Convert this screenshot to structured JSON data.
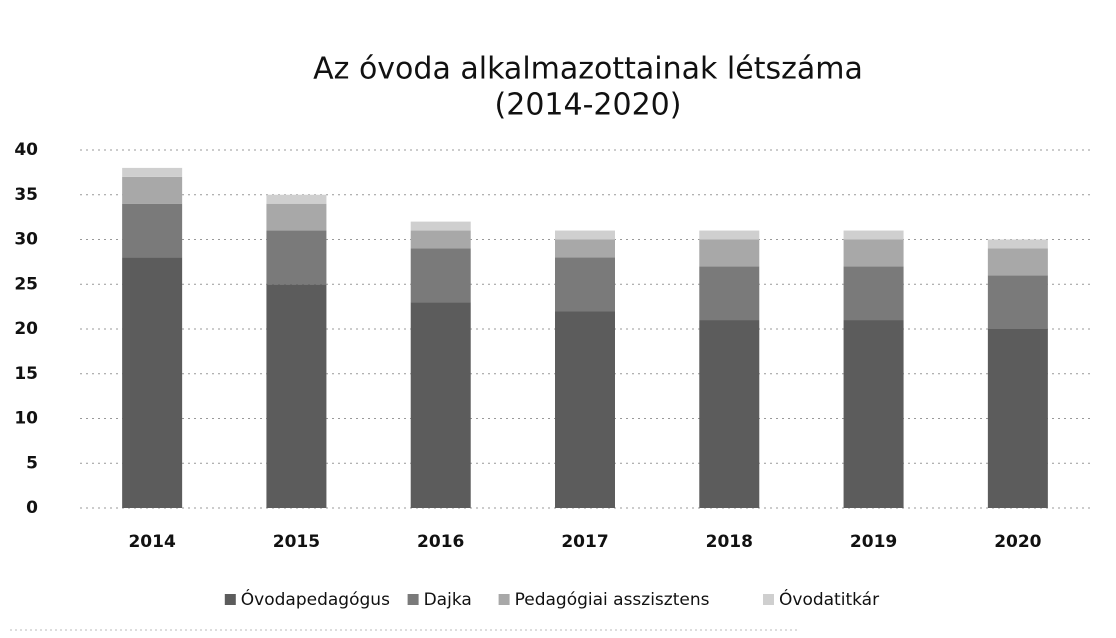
{
  "chart_data": {
    "type": "stacked_bar",
    "title": "Az óvoda alkalmazottainak létszáma",
    "subtitle": "(2014-2020)",
    "categories": [
      "2014",
      "2015",
      "2016",
      "2017",
      "2018",
      "2019",
      "2020"
    ],
    "series": [
      {
        "name": "Óvodapedagógus",
        "color": "#5c5c5c",
        "values": [
          28,
          25,
          23,
          22,
          21,
          21,
          20
        ]
      },
      {
        "name": "Dajka",
        "color": "#7a7a7a",
        "values": [
          6,
          6,
          6,
          6,
          6,
          6,
          6
        ]
      },
      {
        "name": "Pedagógiai asszisztens",
        "color": "#a8a8a8",
        "values": [
          3,
          3,
          2,
          2,
          3,
          3,
          3
        ]
      },
      {
        "name": "Óvodatitkár",
        "color": "#cfcfcf",
        "values": [
          1,
          1,
          1,
          1,
          1,
          1,
          1
        ]
      }
    ],
    "ylim": [
      0,
      40
    ],
    "yticks": [
      0,
      5,
      10,
      15,
      20,
      25,
      30,
      35,
      40
    ],
    "grid": true,
    "legend": "bottom"
  }
}
